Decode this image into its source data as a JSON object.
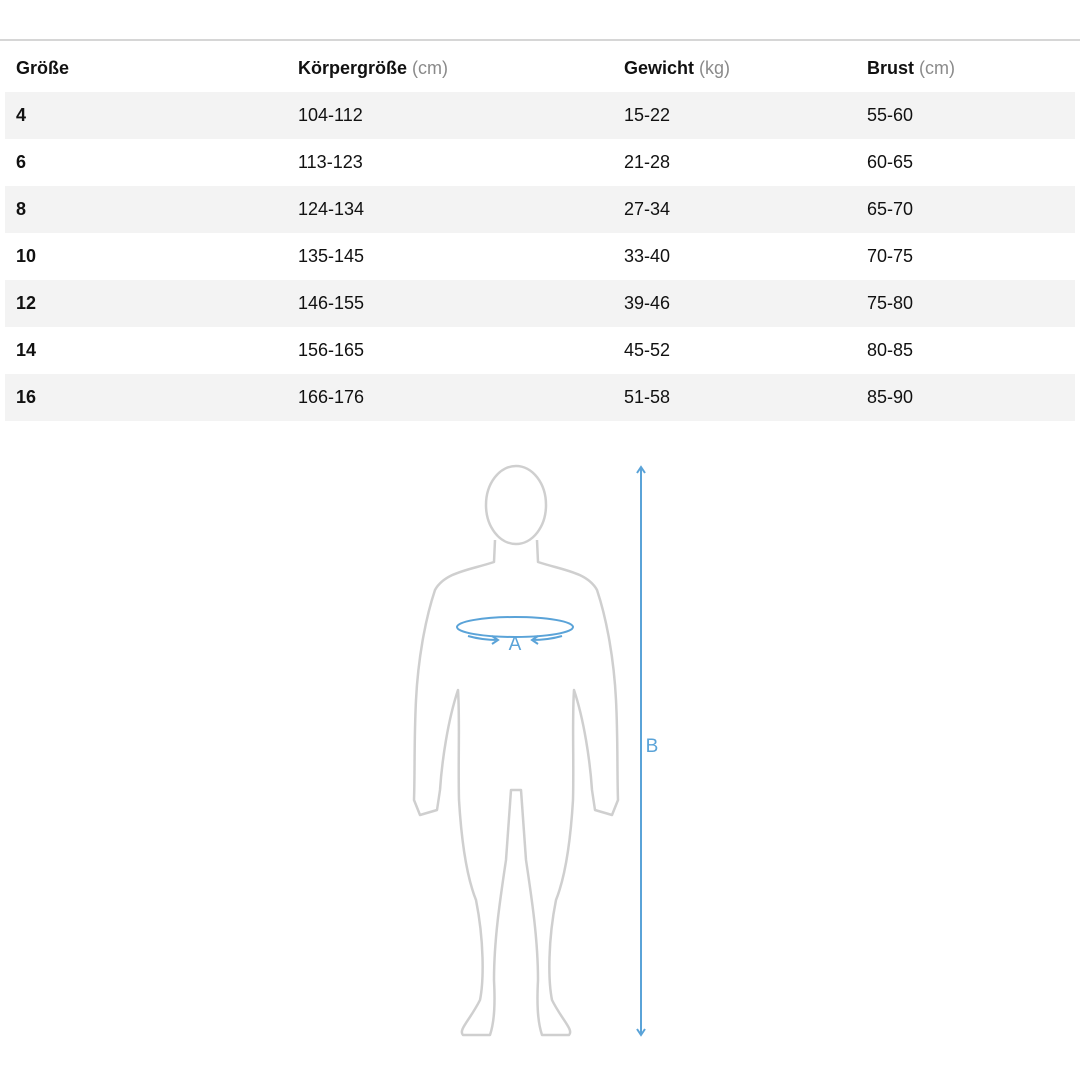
{
  "table": {
    "header": [
      {
        "label": "Größe"
      },
      {
        "label": "Körpergröße",
        "unit": "(cm)"
      },
      {
        "label": "Gewicht",
        "unit": "(kg)"
      },
      {
        "label": "Brust",
        "unit": "(cm)"
      }
    ],
    "rows": [
      [
        "4",
        "104-112",
        "15-22",
        "55-60"
      ],
      [
        "6",
        "113-123",
        "21-28",
        "60-65"
      ],
      [
        "8",
        "124-134",
        "27-34",
        "65-70"
      ],
      [
        "10",
        "135-145",
        "33-40",
        "70-75"
      ],
      [
        "12",
        "146-155",
        "39-46",
        "75-80"
      ],
      [
        "14",
        "156-165",
        "45-52",
        "80-85"
      ],
      [
        "16",
        "166-176",
        "51-58",
        "85-90"
      ]
    ]
  },
  "diagram": {
    "chest_label": "A",
    "height_label": "B"
  }
}
